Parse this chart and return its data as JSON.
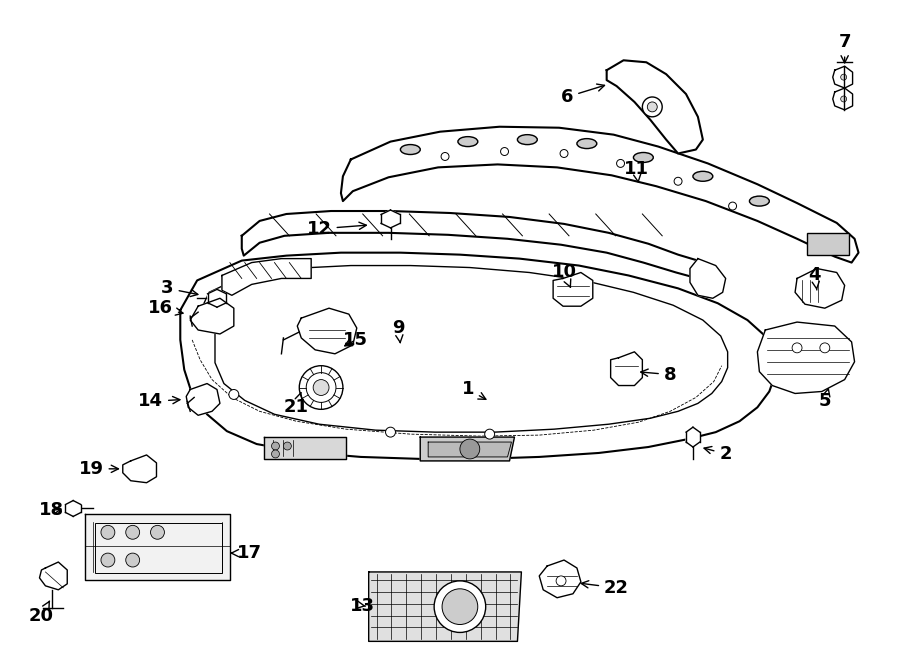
{
  "bg_color": "#ffffff",
  "lc": "#000000",
  "lw_main": 1.5,
  "lw_thin": 1.0,
  "figsize": [
    9.0,
    6.61
  ],
  "dpi": 100
}
